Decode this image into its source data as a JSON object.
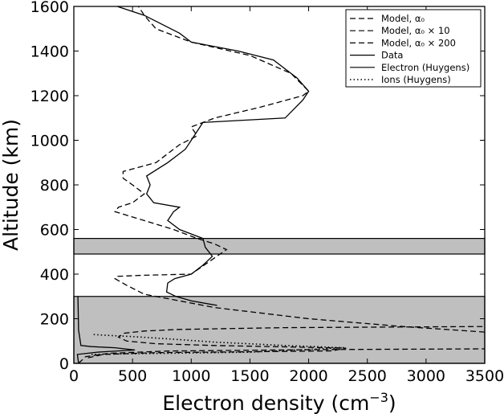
{
  "chart_data": {
    "type": "line",
    "title": "",
    "xlabel": "Electron density (cm",
    "xlabel_exponent": "−3",
    "xlabel_close": ")",
    "ylabel": "Altitude (km)",
    "xlim": [
      0,
      3500
    ],
    "ylim": [
      0,
      1600
    ],
    "xticks": [
      0,
      500,
      1000,
      1500,
      2000,
      2500,
      3000,
      3500
    ],
    "yticks": [
      0,
      200,
      400,
      600,
      800,
      1000,
      1200,
      1400,
      1600
    ],
    "grid": false,
    "legend_position": "top-right",
    "legend": [
      {
        "label": "Model, α₀",
        "style": "dashed"
      },
      {
        "label": "Model, α₀ × 10",
        "style": "dashed"
      },
      {
        "label": "Model, α₀ × 200",
        "style": "dashed"
      },
      {
        "label": "Data",
        "style": "solid"
      },
      {
        "label": "Electron (Huygens)",
        "style": "solid"
      },
      {
        "label": "Ions (Huygens)",
        "style": "dotted"
      }
    ],
    "shaded_bands": [
      {
        "y": [
          0,
          300
        ],
        "color": "#bfbfbf"
      },
      {
        "y": [
          490,
          560
        ],
        "color": "#bfbfbf"
      }
    ],
    "series": [
      {
        "name": "Model, α₀",
        "style": "dashed",
        "points": [
          [
            40,
            0
          ],
          [
            100,
            30
          ],
          [
            300,
            45
          ],
          [
            800,
            55
          ],
          [
            2200,
            62
          ],
          [
            3500,
            65
          ]
        ]
      },
      {
        "name": "Model, α₀ × 10",
        "style": "dashed",
        "points": [
          [
            120,
            25
          ],
          [
            250,
            40
          ],
          [
            700,
            48
          ],
          [
            1500,
            52
          ],
          [
            2200,
            56
          ],
          [
            2320,
            68
          ],
          [
            1800,
            74
          ],
          [
            1200,
            80
          ],
          [
            700,
            88
          ],
          [
            450,
            100
          ],
          [
            380,
            118
          ],
          [
            430,
            135
          ],
          [
            600,
            145
          ],
          [
            900,
            152
          ],
          [
            1800,
            160
          ],
          [
            3500,
            165
          ]
        ]
      },
      {
        "name": "Model, α₀ × 200",
        "style": "dashed",
        "points": [
          [
            3500,
            140
          ],
          [
            2800,
            165
          ],
          [
            2000,
            200
          ],
          [
            1200,
            250
          ],
          [
            800,
            290
          ],
          [
            600,
            310
          ],
          [
            450,
            350
          ],
          [
            350,
            380
          ],
          [
            370,
            390
          ],
          [
            600,
            395
          ],
          [
            1000,
            400
          ],
          [
            1300,
            510
          ],
          [
            1200,
            535
          ],
          [
            1050,
            560
          ],
          [
            850,
            600
          ],
          [
            600,
            640
          ],
          [
            350,
            680
          ],
          [
            380,
            700
          ],
          [
            500,
            720
          ],
          [
            600,
            760
          ],
          [
            500,
            800
          ],
          [
            420,
            830
          ],
          [
            420,
            860
          ],
          [
            700,
            900
          ],
          [
            900,
            980
          ],
          [
            1050,
            1020
          ],
          [
            1000,
            1060
          ],
          [
            1200,
            1100
          ],
          [
            1600,
            1150
          ],
          [
            1950,
            1200
          ],
          [
            2000,
            1220
          ],
          [
            1850,
            1300
          ],
          [
            1500,
            1380
          ],
          [
            1000,
            1440
          ],
          [
            700,
            1500
          ],
          [
            600,
            1560
          ],
          [
            550,
            1600
          ]
        ]
      },
      {
        "name": "Data",
        "style": "solid",
        "points": [
          [
            1220,
            260
          ],
          [
            1000,
            280
          ],
          [
            870,
            300
          ],
          [
            790,
            320
          ],
          [
            800,
            360
          ],
          [
            860,
            380
          ],
          [
            1000,
            400
          ],
          [
            1100,
            440
          ],
          [
            1180,
            480
          ],
          [
            1120,
            520
          ],
          [
            1100,
            560
          ],
          [
            900,
            600
          ],
          [
            800,
            640
          ],
          [
            850,
            680
          ],
          [
            900,
            700
          ],
          [
            680,
            720
          ],
          [
            620,
            760
          ],
          [
            650,
            800
          ],
          [
            620,
            840
          ],
          [
            800,
            900
          ],
          [
            950,
            960
          ],
          [
            1000,
            1000
          ],
          [
            1050,
            1040
          ],
          [
            1100,
            1080
          ],
          [
            1800,
            1100
          ],
          [
            1950,
            1180
          ],
          [
            2000,
            1220
          ],
          [
            1900,
            1280
          ],
          [
            1700,
            1360
          ],
          [
            1400,
            1400
          ],
          [
            1000,
            1440
          ],
          [
            900,
            1480
          ],
          [
            600,
            1560
          ],
          [
            370,
            1600
          ]
        ]
      },
      {
        "name": "Electron (Huygens)",
        "style": "solid",
        "points": [
          [
            40,
            0
          ],
          [
            30,
            40
          ],
          [
            200,
            50
          ],
          [
            520,
            60
          ],
          [
            350,
            70
          ],
          [
            150,
            75
          ],
          [
            60,
            80
          ],
          [
            40,
            150
          ],
          [
            35,
            300
          ]
        ]
      },
      {
        "name": "Ions (Huygens)",
        "style": "dotted",
        "points": [
          [
            150,
            40
          ],
          [
            400,
            42
          ],
          [
            800,
            45
          ],
          [
            1500,
            50
          ],
          [
            2300,
            70
          ],
          [
            1800,
            80
          ],
          [
            1200,
            95
          ],
          [
            800,
            110
          ],
          [
            500,
            120
          ],
          [
            300,
            125
          ],
          [
            200,
            128
          ],
          [
            150,
            130
          ]
        ]
      }
    ]
  }
}
